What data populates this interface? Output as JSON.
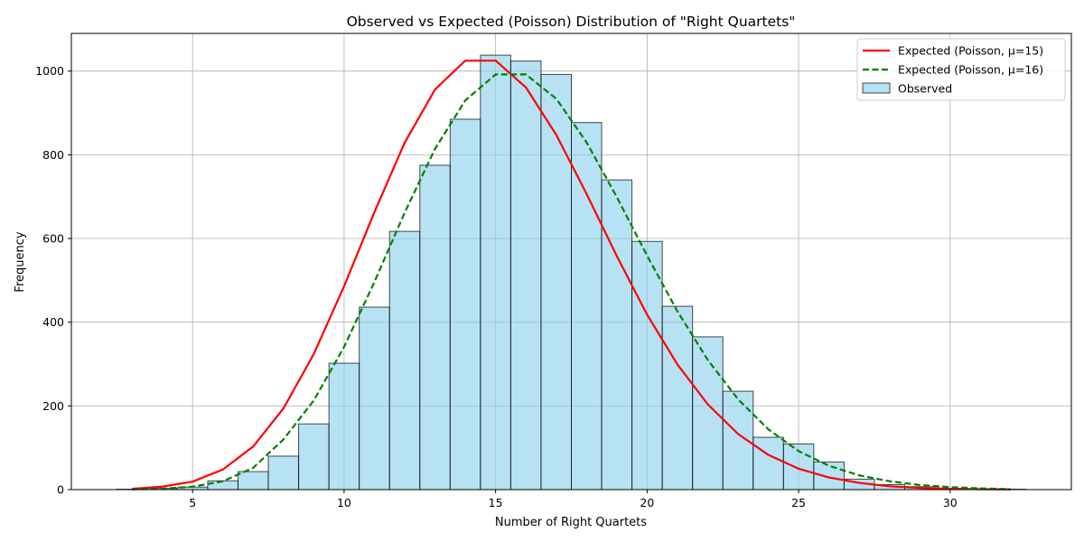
{
  "chart_data": {
    "type": "bar",
    "title": "Observed vs Expected (Poisson) Distribution of \"Right Quartets\"",
    "xlabel": "Number of Right Quartets",
    "ylabel": "Frequency",
    "xlim": [
      1.0,
      34.0
    ],
    "ylim": [
      0,
      1090
    ],
    "x_ticks": [
      5,
      10,
      15,
      20,
      25,
      30
    ],
    "y_ticks": [
      0,
      200,
      400,
      600,
      800,
      1000
    ],
    "grid": true,
    "legend_position": "top-right",
    "colors": {
      "bar_fill": "#87ceeb",
      "bar_edge": "#000000",
      "line1": "#ff0000",
      "line2": "#008000"
    },
    "histogram": {
      "name": "Observed",
      "bin_width": 1,
      "bin_centers": [
        3,
        4,
        5,
        6,
        7,
        8,
        9,
        10,
        11,
        12,
        13,
        14,
        15,
        16,
        17,
        18,
        19,
        20,
        21,
        22,
        23,
        24,
        25,
        26,
        27,
        28,
        29,
        30,
        31,
        32
      ],
      "values": [
        1,
        3,
        6,
        21,
        43,
        80,
        157,
        302,
        436,
        617,
        775,
        885,
        1038,
        1024,
        992,
        877,
        740,
        593,
        438,
        365,
        235,
        125,
        109,
        66,
        25,
        12,
        7,
        3,
        2,
        1
      ]
    },
    "series": [
      {
        "name": "Expected (Poisson, μ=15)",
        "style": "solid",
        "x": [
          3,
          4,
          5,
          6,
          7,
          8,
          9,
          10,
          11,
          12,
          13,
          14,
          15,
          16,
          17,
          18,
          19,
          20,
          21,
          22,
          23,
          24,
          25,
          26,
          27,
          28,
          29,
          30,
          31,
          32
        ],
        "values": [
          2,
          7,
          19,
          48,
          103,
          194,
          324,
          486,
          663,
          829,
          956,
          1025,
          1025,
          961,
          848,
          707,
          558,
          418,
          299,
          204,
          133,
          83,
          50,
          29,
          16,
          8,
          4,
          2,
          1,
          0.5
        ]
      },
      {
        "name": "Expected (Poisson, μ=16)",
        "style": "dashed",
        "x": [
          3,
          4,
          5,
          6,
          7,
          8,
          9,
          10,
          11,
          12,
          13,
          14,
          15,
          16,
          17,
          18,
          19,
          20,
          21,
          22,
          23,
          24,
          25,
          26,
          27,
          28,
          29,
          30,
          31,
          32
        ],
        "values": [
          0.6,
          2,
          7,
          20,
          52,
          120,
          213,
          341,
          496,
          662,
          814,
          930,
          992,
          992,
          934,
          830,
          699,
          559,
          426,
          310,
          216,
          144,
          92,
          57,
          34,
          20,
          11,
          6,
          3,
          1
        ]
      }
    ]
  }
}
